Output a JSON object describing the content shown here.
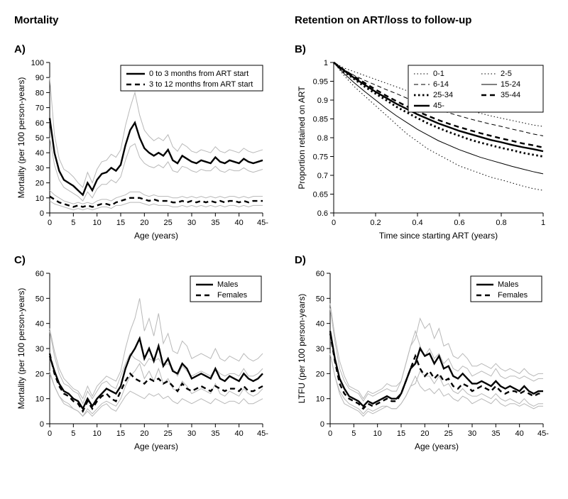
{
  "headers": {
    "left": "Mortality",
    "right": "Retention on ART/loss to follow-up"
  },
  "labels": {
    "A": "A)",
    "B": "B)",
    "C": "C)",
    "D": "D)"
  },
  "panelA": {
    "type": "line",
    "xlabel": "Age (years)",
    "ylabel": "Mortality (per 100 person-years)",
    "xlim": [
      0,
      45
    ],
    "ylim": [
      0,
      100
    ],
    "xtick_step": 5,
    "ytick_step": 10,
    "xtick_labels": [
      "0",
      "5",
      "10",
      "15",
      "20",
      "25",
      "30",
      "35",
      "40",
      "45-"
    ],
    "legend": {
      "items": [
        {
          "label": "0 to 3 months from ART start",
          "style": "thick"
        },
        {
          "label": "3 to 12 months from ART start",
          "style": "thick-dash"
        }
      ]
    },
    "series": {
      "s1": {
        "x": [
          0,
          1,
          2,
          3,
          4,
          5,
          6,
          7,
          8,
          9,
          10,
          11,
          12,
          13,
          14,
          15,
          16,
          17,
          18,
          19,
          20,
          21,
          22,
          23,
          24,
          25,
          26,
          27,
          28,
          29,
          30,
          31,
          32,
          33,
          34,
          35,
          36,
          37,
          38,
          39,
          40,
          41,
          42,
          43,
          44,
          45
        ],
        "y": [
          63,
          40,
          28,
          22,
          20,
          18,
          15,
          12,
          20,
          15,
          22,
          26,
          27,
          30,
          28,
          32,
          45,
          55,
          60,
          50,
          43,
          40,
          38,
          40,
          38,
          42,
          35,
          33,
          38,
          36,
          34,
          33,
          35,
          34,
          33,
          37,
          34,
          33,
          35,
          34,
          33,
          36,
          34,
          33,
          34,
          35
        ]
      },
      "s1_lo": {
        "y": [
          50,
          32,
          22,
          17,
          15,
          13,
          11,
          8,
          14,
          10,
          16,
          19,
          19,
          22,
          20,
          24,
          35,
          44,
          46,
          37,
          33,
          31,
          30,
          32,
          30,
          34,
          28,
          27,
          31,
          30,
          28,
          27,
          29,
          28,
          28,
          31,
          28,
          27,
          29,
          28,
          28,
          30,
          28,
          27,
          28,
          29
        ]
      },
      "s1_hi": {
        "y": [
          90,
          52,
          36,
          29,
          27,
          24,
          20,
          17,
          27,
          20,
          29,
          34,
          35,
          39,
          37,
          42,
          58,
          70,
          80,
          65,
          55,
          51,
          48,
          50,
          48,
          52,
          44,
          41,
          46,
          44,
          41,
          40,
          42,
          41,
          40,
          44,
          41,
          40,
          42,
          41,
          40,
          43,
          41,
          40,
          41,
          42
        ]
      },
      "s2": {
        "y": [
          11,
          9,
          7,
          6,
          5,
          4,
          5,
          4,
          5,
          4,
          5,
          6,
          6,
          5,
          7,
          8,
          9,
          10,
          10,
          10,
          9,
          8,
          9,
          8,
          8,
          8,
          7,
          7,
          8,
          7,
          8,
          7,
          8,
          7,
          8,
          7,
          8,
          7,
          8,
          8,
          7,
          8,
          7,
          8,
          8,
          8
        ]
      },
      "s2_lo": {
        "y": [
          8,
          6,
          5,
          4,
          3,
          2,
          3,
          2,
          3,
          2,
          3,
          4,
          4,
          3,
          5,
          5,
          6,
          7,
          7,
          7,
          6,
          5,
          6,
          5,
          5,
          5,
          4,
          4,
          5,
          4,
          5,
          4,
          5,
          4,
          5,
          4,
          5,
          4,
          5,
          5,
          4,
          5,
          4,
          5,
          5,
          5
        ]
      },
      "s2_hi": {
        "y": [
          15,
          12,
          10,
          8,
          7,
          6,
          7,
          6,
          7,
          6,
          8,
          9,
          9,
          8,
          10,
          11,
          12,
          14,
          14,
          14,
          12,
          11,
          12,
          11,
          11,
          11,
          10,
          10,
          11,
          10,
          11,
          10,
          11,
          10,
          11,
          10,
          11,
          10,
          11,
          11,
          10,
          11,
          10,
          11,
          11,
          11
        ]
      }
    }
  },
  "panelB": {
    "type": "line",
    "xlabel": "Time since starting ART (years)",
    "ylabel": "Proportion retained on ART",
    "xlim": [
      0,
      1
    ],
    "ylim": [
      0.6,
      1.0
    ],
    "xtick_step": 0.2,
    "ytick_step": 0.05,
    "legend": {
      "items": [
        {
          "label": "0-1",
          "style": "thin-dot1"
        },
        {
          "label": "2-5",
          "style": "thin-dot1b"
        },
        {
          "label": "6-14",
          "style": "thin-dash"
        },
        {
          "label": "15-24",
          "style": "thin"
        },
        {
          "label": "25-34",
          "style": "thick-dots"
        },
        {
          "label": "35-44",
          "style": "thick-dash"
        },
        {
          "label": "45-",
          "style": "thick"
        }
      ]
    },
    "x": [
      0,
      0.05,
      0.1,
      0.15,
      0.2,
      0.25,
      0.3,
      0.35,
      0.4,
      0.45,
      0.5,
      0.55,
      0.6,
      0.65,
      0.7,
      0.75,
      0.8,
      0.85,
      0.9,
      0.95,
      1
    ],
    "series": {
      "g0_1": [
        1,
        0.965,
        0.935,
        0.91,
        0.885,
        0.86,
        0.835,
        0.81,
        0.79,
        0.77,
        0.755,
        0.74,
        0.725,
        0.715,
        0.705,
        0.695,
        0.688,
        0.68,
        0.672,
        0.665,
        0.66
      ],
      "g2_5": [
        1,
        0.985,
        0.975,
        0.965,
        0.955,
        0.945,
        0.935,
        0.925,
        0.915,
        0.905,
        0.895,
        0.888,
        0.88,
        0.872,
        0.865,
        0.858,
        0.852,
        0.846,
        0.84,
        0.834,
        0.83
      ],
      "g6_14": [
        1,
        0.98,
        0.965,
        0.952,
        0.94,
        0.928,
        0.917,
        0.905,
        0.895,
        0.885,
        0.875,
        0.866,
        0.858,
        0.85,
        0.843,
        0.836,
        0.83,
        0.823,
        0.817,
        0.81,
        0.805
      ],
      "g15_24": [
        1,
        0.97,
        0.945,
        0.922,
        0.9,
        0.878,
        0.858,
        0.84,
        0.822,
        0.807,
        0.792,
        0.78,
        0.768,
        0.758,
        0.748,
        0.74,
        0.732,
        0.724,
        0.717,
        0.71,
        0.704
      ],
      "g25_34": [
        1,
        0.975,
        0.955,
        0.935,
        0.917,
        0.9,
        0.882,
        0.867,
        0.852,
        0.838,
        0.826,
        0.815,
        0.805,
        0.795,
        0.787,
        0.78,
        0.773,
        0.767,
        0.76,
        0.755,
        0.75
      ],
      "g35_44": [
        1,
        0.98,
        0.962,
        0.945,
        0.928,
        0.912,
        0.897,
        0.883,
        0.87,
        0.858,
        0.847,
        0.837,
        0.828,
        0.82,
        0.812,
        0.805,
        0.798,
        0.792,
        0.785,
        0.78,
        0.774
      ],
      "g45": [
        1,
        0.978,
        0.958,
        0.94,
        0.922,
        0.906,
        0.89,
        0.876,
        0.862,
        0.85,
        0.838,
        0.828,
        0.818,
        0.81,
        0.802,
        0.794,
        0.788,
        0.781,
        0.775,
        0.77,
        0.764
      ]
    }
  },
  "panelC": {
    "type": "line",
    "xlabel": "Age (years)",
    "ylabel": "Mortality (per 100 person-years)",
    "xlim": [
      0,
      45
    ],
    "ylim": [
      0,
      60
    ],
    "xtick_step": 5,
    "ytick_step": 10,
    "xtick_labels": [
      "0",
      "5",
      "10",
      "15",
      "20",
      "25",
      "30",
      "35",
      "40",
      "45-"
    ],
    "legend": {
      "items": [
        {
          "label": "Males",
          "style": "thick"
        },
        {
          "label": "Females",
          "style": "thick-dash"
        }
      ]
    },
    "x": [
      0,
      1,
      2,
      3,
      4,
      5,
      6,
      7,
      8,
      9,
      10,
      11,
      12,
      13,
      14,
      15,
      16,
      17,
      18,
      19,
      20,
      21,
      22,
      23,
      24,
      25,
      26,
      27,
      28,
      29,
      30,
      31,
      32,
      33,
      34,
      35,
      36,
      37,
      38,
      39,
      40,
      41,
      42,
      43,
      44,
      45
    ],
    "males": [
      27,
      21,
      16,
      13,
      12,
      10,
      9,
      6,
      10,
      7,
      10,
      12,
      14,
      13,
      12,
      15,
      22,
      27,
      30,
      34,
      26,
      30,
      25,
      31,
      23,
      26,
      21,
      20,
      24,
      22,
      18,
      19,
      20,
      19,
      18,
      22,
      18,
      17,
      19,
      18,
      17,
      20,
      18,
      17,
      18,
      20
    ],
    "males_lo": [
      20,
      15,
      11,
      9,
      8,
      6,
      5,
      3,
      6,
      4,
      6,
      8,
      9,
      8,
      7,
      10,
      15,
      19,
      21,
      24,
      18,
      21,
      17,
      22,
      16,
      18,
      14,
      13,
      17,
      15,
      12,
      13,
      14,
      13,
      12,
      16,
      12,
      11,
      13,
      12,
      11,
      14,
      12,
      11,
      12,
      14
    ],
    "males_hi": [
      38,
      29,
      22,
      18,
      16,
      14,
      13,
      10,
      15,
      11,
      15,
      17,
      19,
      18,
      17,
      21,
      30,
      37,
      42,
      50,
      37,
      42,
      35,
      44,
      32,
      36,
      29,
      28,
      33,
      31,
      26,
      27,
      28,
      27,
      26,
      30,
      26,
      25,
      27,
      26,
      25,
      28,
      26,
      25,
      26,
      28
    ],
    "females": [
      28,
      20,
      15,
      12,
      11,
      9,
      8,
      5,
      9,
      6,
      9,
      11,
      12,
      10,
      9,
      13,
      17,
      20,
      18,
      17,
      16,
      18,
      17,
      18,
      16,
      17,
      15,
      13,
      16,
      14,
      13,
      14,
      15,
      14,
      13,
      15,
      14,
      13,
      14,
      14,
      13,
      15,
      13,
      13,
      14,
      15
    ],
    "fem_lo": [
      21,
      15,
      11,
      8,
      7,
      6,
      5,
      3,
      5,
      3,
      5,
      7,
      8,
      6,
      5,
      8,
      11,
      13,
      12,
      11,
      10,
      12,
      11,
      12,
      10,
      11,
      9,
      8,
      10,
      9,
      8,
      9,
      10,
      9,
      8,
      10,
      9,
      8,
      9,
      9,
      8,
      10,
      8,
      8,
      9,
      10
    ],
    "fem_hi": [
      37,
      27,
      20,
      16,
      15,
      13,
      12,
      8,
      13,
      10,
      13,
      16,
      17,
      15,
      14,
      19,
      24,
      28,
      26,
      25,
      23,
      26,
      25,
      26,
      23,
      24,
      22,
      19,
      23,
      21,
      19,
      20,
      21,
      20,
      19,
      22,
      20,
      19,
      20,
      20,
      19,
      22,
      19,
      19,
      20,
      22
    ]
  },
  "panelD": {
    "type": "line",
    "xlabel": "Age (years)",
    "ylabel": "LTFU (per 100 person-years)",
    "xlim": [
      0,
      45
    ],
    "ylim": [
      0,
      60
    ],
    "xtick_step": 5,
    "ytick_step": 10,
    "xtick_labels": [
      "0",
      "5",
      "10",
      "15",
      "20",
      "25",
      "30",
      "35",
      "40",
      "45-"
    ],
    "legend": {
      "items": [
        {
          "label": "Males",
          "style": "thick"
        },
        {
          "label": "Females",
          "style": "thick-dash"
        }
      ]
    },
    "x": [
      0,
      1,
      2,
      3,
      4,
      5,
      6,
      7,
      8,
      9,
      10,
      11,
      12,
      13,
      14,
      15,
      16,
      17,
      18,
      19,
      20,
      21,
      22,
      23,
      24,
      25,
      26,
      27,
      28,
      29,
      30,
      31,
      32,
      33,
      34,
      35,
      36,
      37,
      38,
      39,
      40,
      41,
      42,
      43,
      44,
      45
    ],
    "males": [
      37,
      26,
      18,
      14,
      11,
      10,
      9,
      7,
      9,
      8,
      9,
      10,
      11,
      10,
      10,
      12,
      17,
      22,
      24,
      30,
      27,
      28,
      24,
      27,
      22,
      23,
      19,
      18,
      20,
      18,
      16,
      16,
      17,
      16,
      15,
      17,
      15,
      14,
      15,
      14,
      13,
      15,
      13,
      12,
      13,
      13
    ],
    "males_lo": [
      28,
      19,
      13,
      10,
      8,
      7,
      6,
      4,
      6,
      5,
      6,
      7,
      7,
      6,
      6,
      8,
      11,
      15,
      16,
      21,
      19,
      19,
      16,
      19,
      15,
      16,
      13,
      12,
      14,
      12,
      11,
      11,
      12,
      11,
      10,
      12,
      10,
      9,
      10,
      9,
      8,
      10,
      8,
      7,
      8,
      8
    ],
    "males_hi": [
      48,
      35,
      25,
      19,
      15,
      14,
      13,
      10,
      13,
      12,
      13,
      14,
      16,
      15,
      15,
      17,
      24,
      31,
      34,
      42,
      38,
      40,
      34,
      38,
      31,
      32,
      27,
      26,
      28,
      26,
      23,
      23,
      24,
      23,
      22,
      24,
      22,
      21,
      22,
      21,
      20,
      22,
      20,
      19,
      20,
      20
    ],
    "females": [
      36,
      25,
      16,
      12,
      10,
      9,
      8,
      6,
      8,
      7,
      8,
      9,
      10,
      9,
      9,
      12,
      17,
      22,
      27,
      22,
      19,
      21,
      18,
      20,
      17,
      18,
      15,
      14,
      16,
      15,
      13,
      14,
      15,
      14,
      13,
      15,
      13,
      12,
      13,
      13,
      12,
      13,
      12,
      11,
      12,
      12
    ],
    "fem_lo": [
      28,
      19,
      12,
      8,
      7,
      6,
      5,
      3,
      5,
      4,
      5,
      6,
      7,
      6,
      6,
      8,
      11,
      15,
      19,
      15,
      13,
      14,
      12,
      14,
      11,
      12,
      10,
      9,
      11,
      10,
      8,
      9,
      10,
      9,
      8,
      10,
      8,
      7,
      8,
      8,
      7,
      8,
      7,
      6,
      7,
      7
    ],
    "fem_hi": [
      46,
      33,
      22,
      17,
      14,
      13,
      12,
      9,
      12,
      11,
      12,
      13,
      14,
      13,
      13,
      17,
      24,
      31,
      37,
      31,
      27,
      30,
      26,
      28,
      24,
      26,
      22,
      21,
      23,
      22,
      19,
      20,
      21,
      20,
      19,
      22,
      19,
      18,
      19,
      19,
      18,
      19,
      18,
      17,
      18,
      18
    ]
  },
  "colors": {
    "line": "#000000",
    "ci": "#b8b8b8",
    "bg": "#ffffff"
  }
}
